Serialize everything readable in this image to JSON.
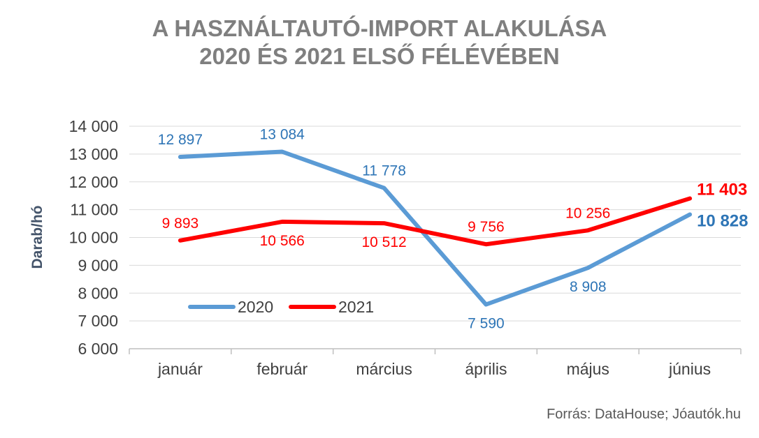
{
  "chart_data": {
    "type": "line",
    "title_lines": [
      "A HASZNÁLTAUTÓ-IMPORT ALAKULÁSA",
      "2020 ÉS 2021 ELSŐ FÉLÉVÉBEN"
    ],
    "ylabel": "Darab/hó",
    "xlabel": "",
    "categories": [
      "január",
      "február",
      "március",
      "április",
      "május",
      "június"
    ],
    "ylim": [
      6000,
      14000
    ],
    "yticks": [
      6000,
      7000,
      8000,
      9000,
      10000,
      11000,
      12000,
      13000,
      14000
    ],
    "ytick_labels": [
      "6 000",
      "7 000",
      "8 000",
      "9 000",
      "10 000",
      "11 000",
      "12 000",
      "13 000",
      "14 000"
    ],
    "grid": true,
    "legend_position": "lower-left",
    "series": [
      {
        "name": "2020",
        "color": "#5b9bd5",
        "label_color": "#2e75b6",
        "values": [
          12897,
          13084,
          11778,
          7590,
          8908,
          10828
        ],
        "labels": [
          "12 897",
          "13 084",
          "11 778",
          "7 590",
          "8 908",
          "10 828"
        ],
        "label_positions": [
          "above",
          "above",
          "above",
          "below",
          "below",
          "right"
        ],
        "emphasized_last": true
      },
      {
        "name": "2021",
        "color": "#ff0000",
        "label_color": "#ff0000",
        "values": [
          9893,
          10566,
          10512,
          9756,
          10256,
          11403
        ],
        "labels": [
          "9 893",
          "10 566",
          "10 512",
          "9 756",
          "10 256",
          "11 403"
        ],
        "label_positions": [
          "above",
          "below",
          "below",
          "above",
          "above",
          "right"
        ],
        "emphasized_last": true
      }
    ],
    "source": "Forrás: DataHouse; Jóautók.hu"
  }
}
